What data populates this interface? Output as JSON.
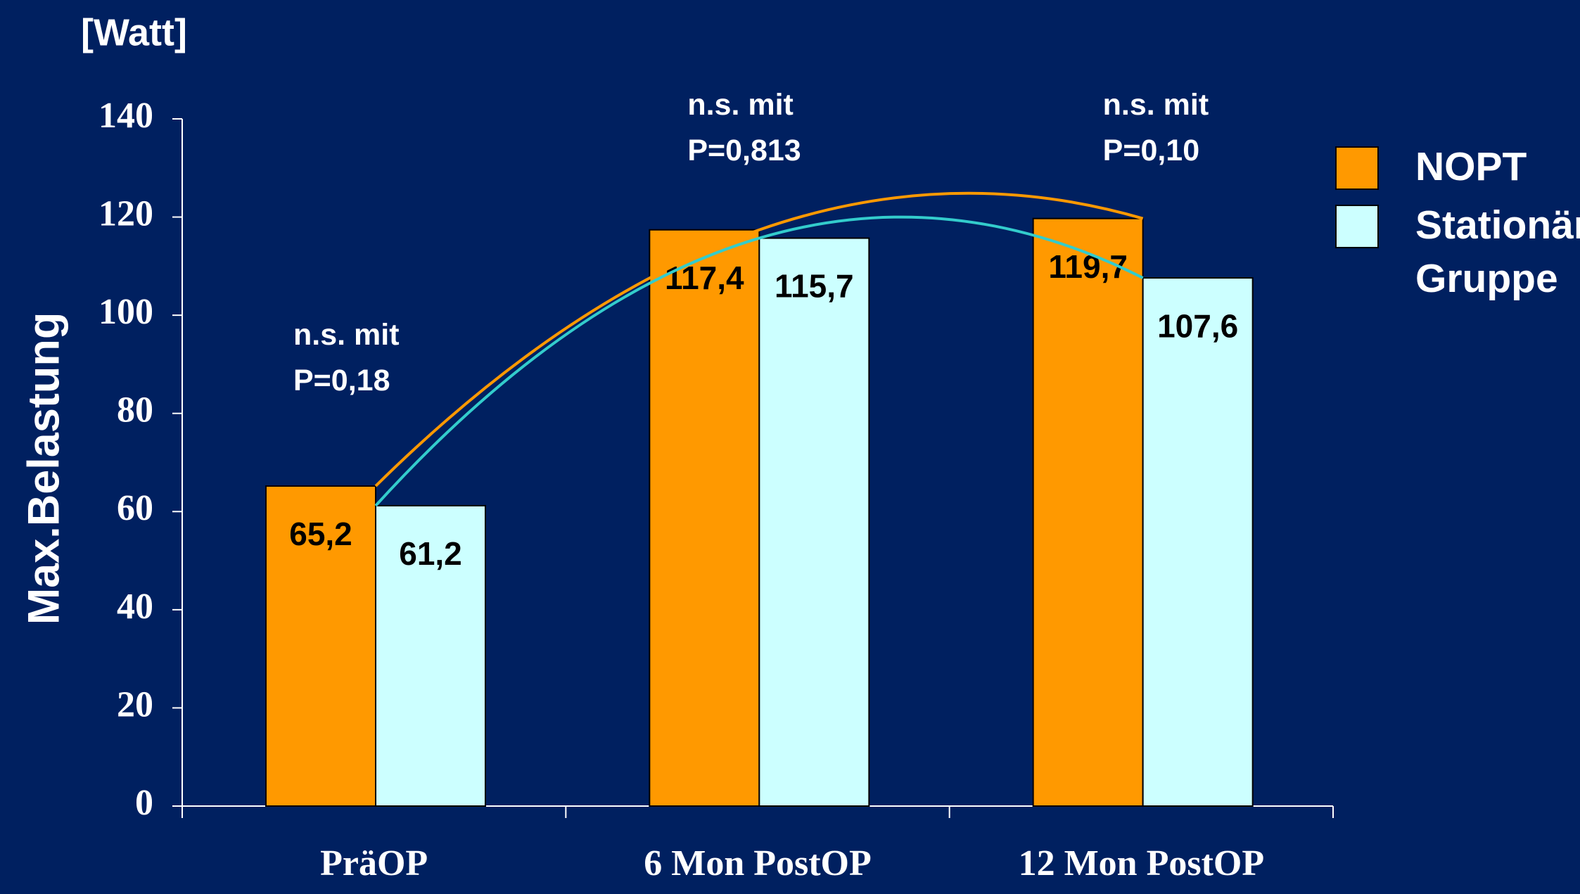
{
  "chart_data": {
    "type": "bar",
    "unit_label": "[Watt]",
    "y_label": "Max.Belastung",
    "categories": [
      "PräOP",
      "6 Mon PostOP",
      "12 Mon PostOP"
    ],
    "series": [
      {
        "name": "NOPT",
        "color": "#ff9900",
        "line_color": "#ff9900",
        "values": [
          65.2,
          117.4,
          119.7
        ],
        "value_labels": [
          "65,2",
          "117,4",
          "119,7"
        ]
      },
      {
        "name": "Stationäre Gruppe",
        "color": "#ccffff",
        "line_color": "#33cccc",
        "values": [
          61.2,
          115.7,
          107.6
        ],
        "value_labels": [
          "61,2",
          "115,7",
          "107,6"
        ]
      }
    ],
    "annotations": [
      "n.s. mit\nP=0,18",
      "n.s. mit\nP=0,813",
      "n.s. mit\nP=0,10"
    ],
    "ylim": [
      0,
      140
    ],
    "yticks": [
      0,
      20,
      40,
      60,
      80,
      100,
      120,
      140
    ],
    "legend": "right"
  }
}
